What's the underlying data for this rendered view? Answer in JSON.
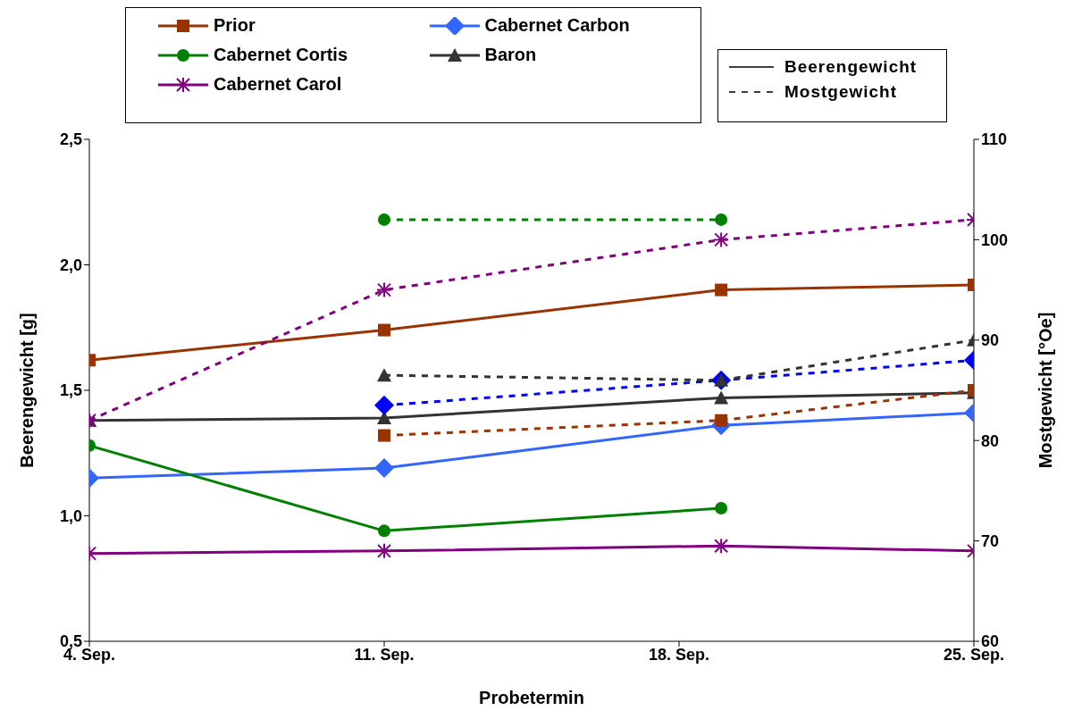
{
  "chart_data": {
    "type": "line",
    "xlabel": "Probetermin",
    "ylabel": "Beerengewicht [g]",
    "y2label": "Mostgewicht [°Oe]",
    "x": [
      "--09-04",
      "--09-11",
      "--09-19",
      "--09-25"
    ],
    "xlim": [
      "--09-04",
      "--09-25"
    ],
    "xticks": [
      {
        "value": "--09-04",
        "label": "4. Sep."
      },
      {
        "value": "--09-11",
        "label": "11. Sep."
      },
      {
        "value": "--09-18",
        "label": "18. Sep."
      },
      {
        "value": "--09-25",
        "label": "25. Sep."
      }
    ],
    "ylim": [
      0.5,
      2.5
    ],
    "yticks": [
      {
        "value": 0.5,
        "label": "0,5"
      },
      {
        "value": 1.0,
        "label": "1,0"
      },
      {
        "value": 1.5,
        "label": "1,5"
      },
      {
        "value": 2.0,
        "label": "2,0"
      },
      {
        "value": 2.5,
        "label": "2,5"
      }
    ],
    "y2lim": [
      60,
      110
    ],
    "y2ticks": [
      60,
      70,
      80,
      90,
      100,
      110
    ],
    "legend": "top",
    "annotations": [
      "Beerengewicht",
      "Mostgewicht"
    ],
    "series": [
      {
        "name": "Prior",
        "color": "#993300",
        "marker": "square",
        "line_style": "solid",
        "values": [
          1.62,
          1.74,
          1.9,
          1.92
        ]
      },
      {
        "name": "Cabernet Carbon",
        "color": "#3366ff",
        "marker": "diamond",
        "line_style": "solid",
        "values": [
          1.15,
          1.19,
          1.36,
          1.41
        ]
      },
      {
        "name": "Cabernet Cortis",
        "color": "#008000",
        "marker": "circle",
        "line_style": "solid",
        "values": [
          1.28,
          0.94,
          1.03,
          null
        ]
      },
      {
        "name": "Baron",
        "color": "#333333",
        "marker": "triangle",
        "line_style": "solid",
        "values": [
          1.38,
          1.39,
          1.47,
          1.49
        ]
      },
      {
        "name": "Cabernet Carol",
        "color": "#800080",
        "marker": "cross",
        "line_style": "solid",
        "values": [
          0.85,
          0.86,
          0.88,
          0.86
        ]
      },
      {
        "color": "#993300",
        "marker": "square",
        "line_style": "dashed",
        "axis": "y2",
        "x": [
          "--09-11",
          "--09-19",
          "--09-25"
        ],
        "values": [
          80.5,
          82,
          85
        ]
      },
      {
        "color": "#0000ff",
        "marker": "diamond",
        "line_style": "dashed",
        "axis": "y2",
        "x": [
          "--09-11",
          "--09-19",
          "--09-25"
        ],
        "values": [
          83.5,
          86,
          88
        ]
      },
      {
        "color": "#008000",
        "marker": "circle",
        "line_style": "dashed",
        "axis": "y2",
        "x": [
          "--09-11",
          "--09-19"
        ],
        "values": [
          102,
          102
        ]
      },
      {
        "color": "#333333",
        "marker": "triangle",
        "line_style": "dashed",
        "axis": "y2",
        "x": [
          "--09-11",
          "--09-19",
          "--09-25"
        ],
        "values": [
          86.5,
          86,
          90
        ]
      },
      {
        "color": "#800080",
        "marker": "cross",
        "line_style": "dashed",
        "axis": "y2",
        "x": [
          "--09-04",
          "--09-11",
          "--09-19",
          "--09-25"
        ],
        "values": [
          82,
          95,
          100,
          102
        ]
      }
    ]
  }
}
